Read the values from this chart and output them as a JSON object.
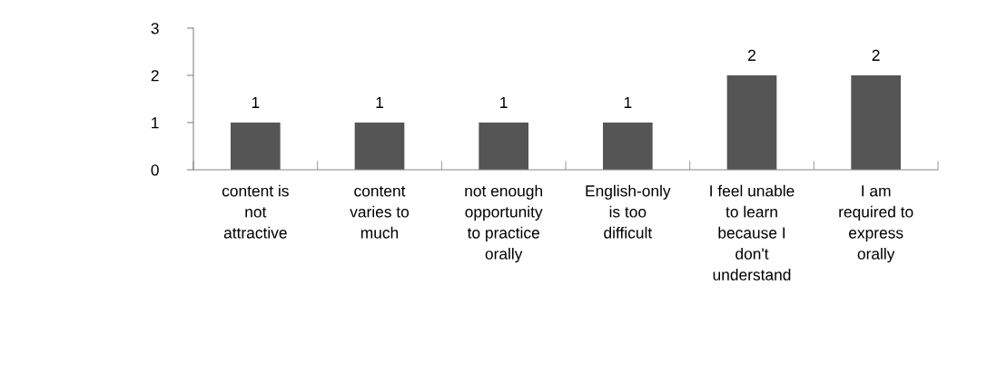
{
  "chart_data": {
    "type": "bar",
    "categories": [
      "content is\nnot\nattractive",
      "content\nvaries to\nmuch",
      "not enough\nopportunity\nto practice\norally",
      "English-only\nis too\ndifficult",
      "I feel unable\nto learn\nbecause I\ndon't\nunderstand",
      "I am\nrequired to\nexpress\norally"
    ],
    "values": [
      1,
      1,
      1,
      1,
      2,
      2
    ],
    "color": "#555555",
    "ylim": [
      0,
      3
    ],
    "yticks": [
      0,
      1,
      2,
      3
    ],
    "grid": false,
    "data_labels": true
  }
}
